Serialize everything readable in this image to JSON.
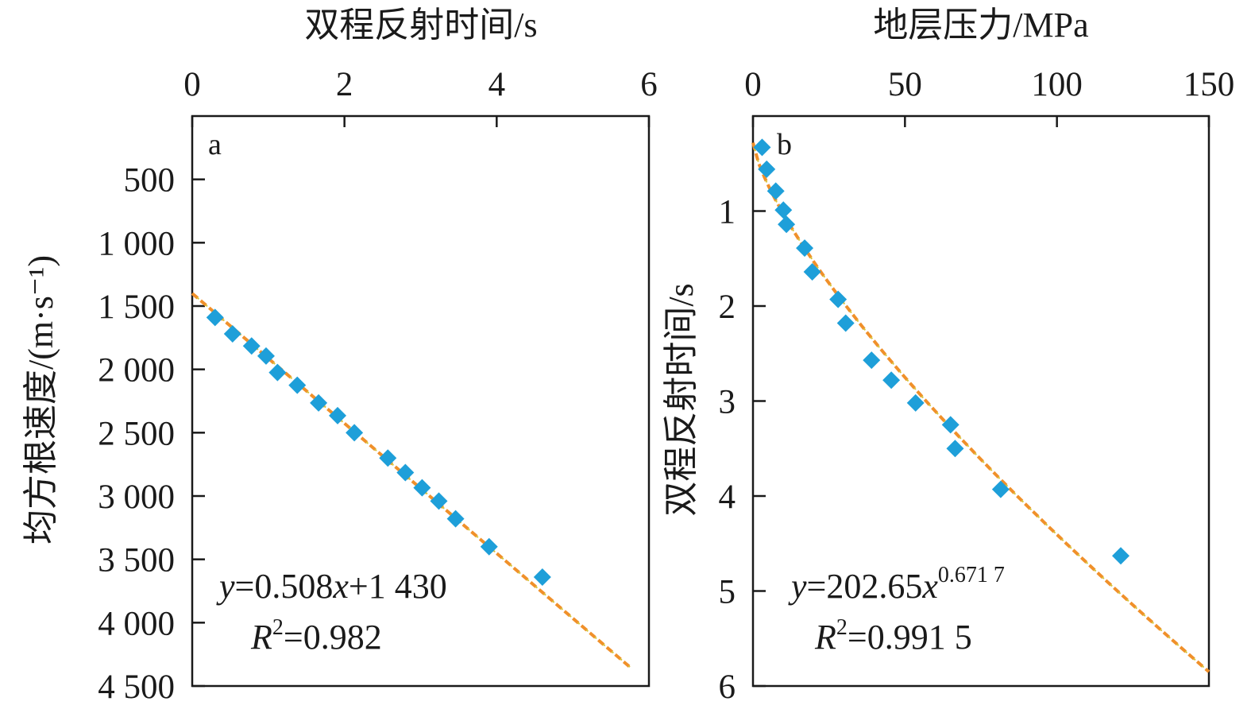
{
  "colors": {
    "point": "#1e9fd9",
    "fit_line": "#f0902a",
    "fit_dash": "#d8c23a",
    "axis": "#1a1a1a"
  },
  "chart_data": [
    {
      "type": "scatter",
      "panel_label": "a",
      "title": "双程反射时间/s",
      "xlabel": "双程反射时间/s",
      "ylabel": "均方根速度/(m·s⁻¹)",
      "x_axis_position": "top",
      "y_axis_inverted": true,
      "xlim": [
        0,
        6
      ],
      "ylim": [
        0,
        4500
      ],
      "x_ticks": [
        0,
        2,
        4,
        6
      ],
      "x_tick_labels": [
        "0",
        "2",
        "4",
        "6"
      ],
      "y_ticks": [
        500,
        1000,
        1500,
        2000,
        2500,
        3000,
        3500,
        4000,
        4500
      ],
      "y_tick_labels": [
        "500",
        "1 000",
        "1 500",
        "2 000",
        "2 500",
        "3 000",
        "3 500",
        "4 000",
        "4 500"
      ],
      "points": {
        "x": [
          0.3,
          0.53,
          0.78,
          0.97,
          1.12,
          1.38,
          1.66,
          1.91,
          2.13,
          2.57,
          2.8,
          3.02,
          3.24,
          3.46,
          3.9,
          4.6
        ],
        "y": [
          1590,
          1720,
          1815,
          1895,
          2025,
          2125,
          2265,
          2365,
          2500,
          2700,
          2815,
          2935,
          3040,
          3180,
          3400,
          3640
        ]
      },
      "fit": {
        "model": "linear",
        "slope": 0.508,
        "intercept": 1430,
        "x_range": [
          0,
          5.75
        ],
        "y_range": [
          1400,
          4350
        ]
      },
      "equation": {
        "y": "y",
        "eq_rest": "=0.508",
        "x": "x",
        "tail": "+1 430"
      },
      "r2": {
        "R": "R",
        "two": "2",
        "value": "=0.982"
      }
    },
    {
      "type": "scatter",
      "panel_label": "b",
      "title": "地层压力/MPa",
      "xlabel": "地层压力/MPa",
      "ylabel": "双程反射时间/s",
      "x_axis_position": "top",
      "y_axis_inverted": true,
      "xlim": [
        0,
        150
      ],
      "ylim": [
        0,
        6
      ],
      "x_ticks": [
        0,
        50,
        100,
        150
      ],
      "x_tick_labels": [
        "0",
        "50",
        "100",
        "150"
      ],
      "y_ticks": [
        1,
        2,
        3,
        4,
        5,
        6
      ],
      "y_tick_labels": [
        "1",
        "2",
        "3",
        "4",
        "5",
        "6"
      ],
      "points": {
        "x": [
          3,
          4.5,
          7.5,
          10,
          11,
          17,
          19.5,
          28,
          30.5,
          39,
          45.5,
          53.5,
          65,
          66.5,
          81.5,
          121
        ],
        "y": [
          0.33,
          0.56,
          0.79,
          0.99,
          1.14,
          1.39,
          1.64,
          1.93,
          2.18,
          2.57,
          2.78,
          3.02,
          3.25,
          3.5,
          3.93,
          4.63
        ]
      },
      "fit": {
        "model": "power",
        "a": 202.65,
        "b": 0.6717,
        "x_range": [
          0,
          150
        ],
        "y_range": [
          0.28,
          5.85
        ]
      },
      "equation": {
        "y": "y",
        "eq_rest": "=202.65",
        "x": "x",
        "exponent": "0.671 7"
      },
      "r2": {
        "R": "R",
        "two": "2",
        "value": "=0.991 5"
      }
    }
  ]
}
